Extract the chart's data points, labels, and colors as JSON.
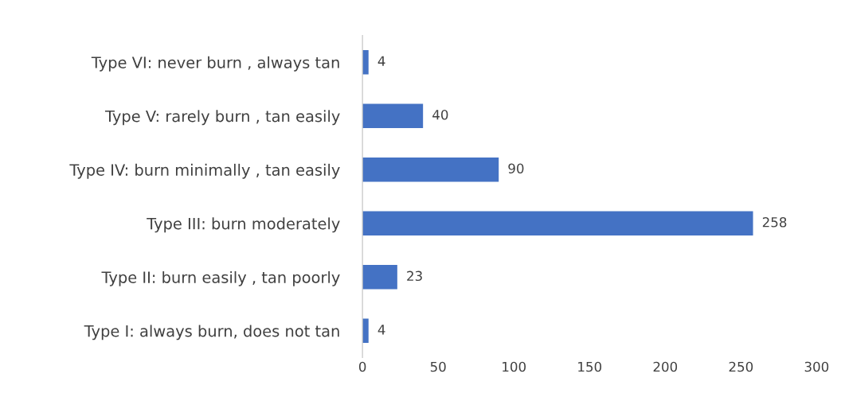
{
  "chart_data": {
    "type": "bar",
    "orientation": "horizontal",
    "categories": [
      "Type VI: never burn , always tan",
      "Type V: rarely burn , tan easily",
      "Type IV: burn minimally , tan easily",
      "Type III: burn moderately",
      "Type II: burn easily , tan poorly",
      "Type I: always burn, does not tan"
    ],
    "values": [
      4,
      40,
      90,
      258,
      23,
      4
    ],
    "color": "#4472c4",
    "xlim": [
      0,
      300
    ],
    "xticks": [
      0,
      50,
      100,
      150,
      200,
      250,
      300
    ],
    "data_labels": true,
    "grid": false,
    "legend": false
  }
}
